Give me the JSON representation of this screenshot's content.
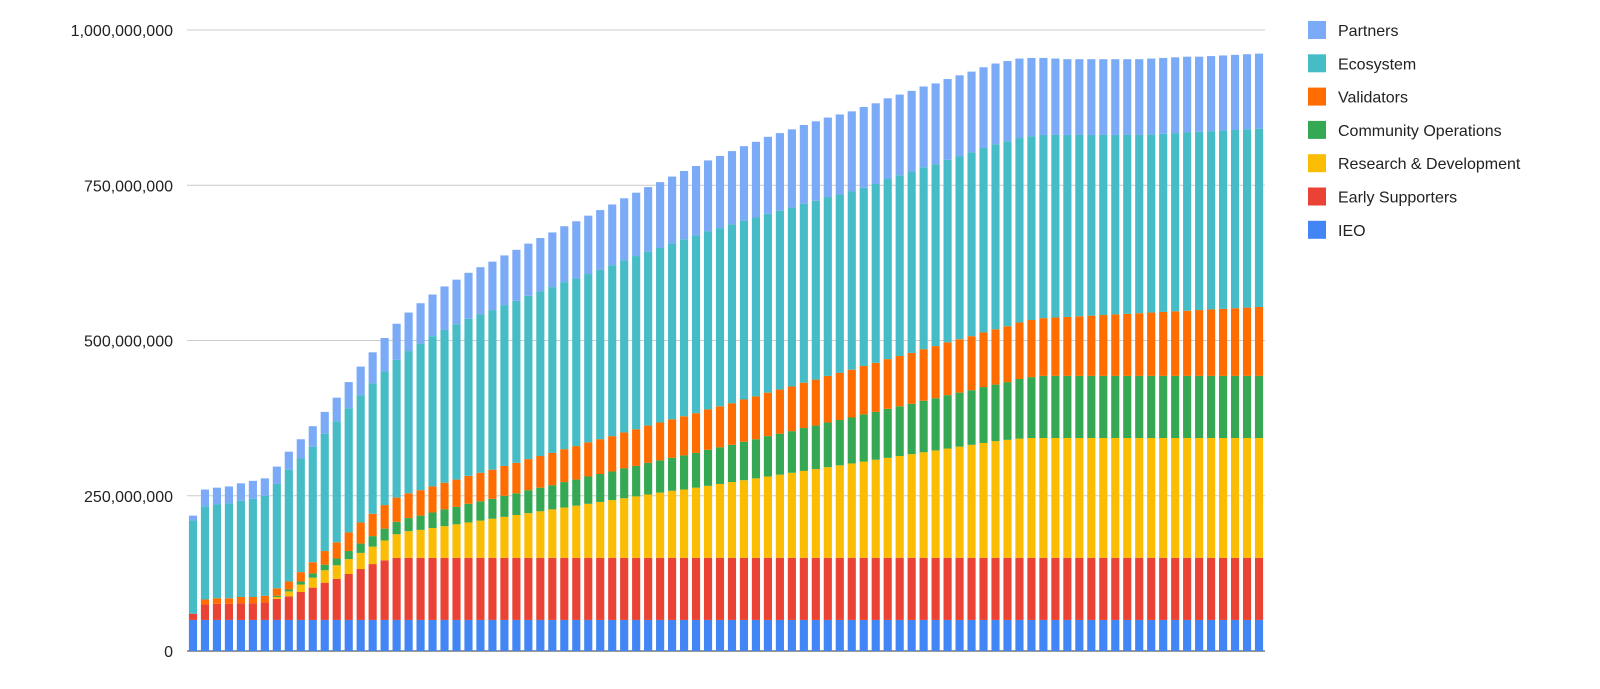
{
  "chart_data": {
    "type": "bar",
    "stacked": true,
    "categories_count": 90,
    "ylim": [
      0,
      1000000000
    ],
    "y_ticks": [
      {
        "value": 0,
        "label": "0"
      },
      {
        "value": 250000000,
        "label": "250,000,000"
      },
      {
        "value": 500000000,
        "label": "500,000,000"
      },
      {
        "value": 750000000,
        "label": "750,000,000"
      },
      {
        "value": 1000000000,
        "label": "1,000,000,000"
      }
    ],
    "grid": "horizontal",
    "legend_position": "right",
    "legend_order": [
      "Partners",
      "Ecosystem",
      "Validators",
      "Community Operations",
      "Research & Development",
      "Early Supporters",
      "IEO"
    ],
    "series": [
      {
        "name": "IEO",
        "color": "#4285F4",
        "values": [
          50000000,
          50000000,
          50000000,
          50000000,
          50000000,
          50000000,
          50000000,
          50000000,
          50000000,
          50000000,
          50000000,
          50000000,
          50000000,
          50000000,
          50000000,
          50000000,
          50000000,
          50000000,
          50000000,
          50000000,
          50000000,
          50000000,
          50000000,
          50000000,
          50000000,
          50000000,
          50000000,
          50000000,
          50000000,
          50000000,
          50000000,
          50000000,
          50000000,
          50000000,
          50000000,
          50000000,
          50000000,
          50000000,
          50000000,
          50000000,
          50000000,
          50000000,
          50000000,
          50000000,
          50000000,
          50000000,
          50000000,
          50000000,
          50000000,
          50000000,
          50000000,
          50000000,
          50000000,
          50000000,
          50000000,
          50000000,
          50000000,
          50000000,
          50000000,
          50000000,
          50000000,
          50000000,
          50000000,
          50000000,
          50000000,
          50000000,
          50000000,
          50000000,
          50000000,
          50000000,
          50000000,
          50000000,
          50000000,
          50000000,
          50000000,
          50000000,
          50000000,
          50000000,
          50000000,
          50000000,
          50000000,
          50000000,
          50000000,
          50000000,
          50000000,
          50000000,
          50000000,
          50000000,
          50000000,
          50000000
        ]
      },
      {
        "name": "Early Supporters",
        "color": "#EA4335",
        "values": [
          10000000,
          25000000,
          26000000,
          26000000,
          27000000,
          27000000,
          28000000,
          34000000,
          38000000,
          45000000,
          52000000,
          60000000,
          66000000,
          74000000,
          82000000,
          90000000,
          96000000,
          100000000,
          100000000,
          100000000,
          100000000,
          100000000,
          100000000,
          100000000,
          100000000,
          100000000,
          100000000,
          100000000,
          100000000,
          100000000,
          100000000,
          100000000,
          100000000,
          100000000,
          100000000,
          100000000,
          100000000,
          100000000,
          100000000,
          100000000,
          100000000,
          100000000,
          100000000,
          100000000,
          100000000,
          100000000,
          100000000,
          100000000,
          100000000,
          100000000,
          100000000,
          100000000,
          100000000,
          100000000,
          100000000,
          100000000,
          100000000,
          100000000,
          100000000,
          100000000,
          100000000,
          100000000,
          100000000,
          100000000,
          100000000,
          100000000,
          100000000,
          100000000,
          100000000,
          100000000,
          100000000,
          100000000,
          100000000,
          100000000,
          100000000,
          100000000,
          100000000,
          100000000,
          100000000,
          100000000,
          100000000,
          100000000,
          100000000,
          100000000,
          100000000,
          100000000,
          100000000,
          100000000,
          100000000,
          100000000
        ]
      },
      {
        "name": "Research & Development",
        "color": "#FBBC04",
        "values": [
          0,
          0,
          0,
          0,
          0,
          0,
          0,
          3000000,
          8000000,
          12000000,
          16000000,
          20000000,
          22000000,
          24000000,
          26000000,
          28000000,
          32000000,
          38000000,
          43000000,
          45000000,
          48000000,
          51000000,
          54000000,
          57000000,
          60000000,
          63000000,
          66000000,
          69000000,
          72000000,
          75000000,
          78000000,
          81000000,
          84000000,
          87000000,
          90000000,
          93000000,
          96000000,
          99000000,
          102000000,
          105000000,
          108000000,
          110000000,
          113000000,
          116000000,
          119000000,
          122000000,
          125000000,
          128000000,
          131000000,
          134000000,
          137000000,
          140000000,
          143000000,
          146000000,
          149000000,
          152000000,
          155000000,
          158000000,
          161000000,
          164000000,
          167000000,
          170000000,
          173000000,
          176000000,
          179000000,
          182000000,
          185000000,
          188000000,
          190000000,
          192000000,
          193000000,
          193000000,
          193000000,
          193000000,
          193000000,
          193000000,
          193000000,
          193000000,
          193000000,
          193000000,
          193000000,
          193000000,
          193000000,
          193000000,
          193000000,
          193000000,
          193000000,
          193000000,
          193000000,
          193000000
        ]
      },
      {
        "name": "Community Operations",
        "color": "#34A853",
        "values": [
          0,
          0,
          0,
          0,
          0,
          0,
          0,
          2000000,
          3000000,
          5000000,
          7000000,
          9000000,
          11000000,
          13000000,
          15000000,
          17000000,
          19000000,
          20000000,
          21000000,
          23000000,
          25000000,
          27000000,
          28000000,
          30000000,
          31000000,
          32000000,
          34000000,
          35000000,
          37000000,
          38000000,
          39000000,
          41000000,
          42000000,
          44000000,
          45000000,
          46000000,
          48000000,
          49000000,
          51000000,
          52000000,
          53000000,
          55000000,
          56000000,
          58000000,
          59000000,
          60000000,
          62000000,
          63000000,
          65000000,
          66000000,
          67000000,
          69000000,
          70000000,
          72000000,
          73000000,
          74000000,
          76000000,
          77000000,
          79000000,
          80000000,
          81000000,
          83000000,
          84000000,
          86000000,
          87000000,
          88000000,
          90000000,
          91000000,
          93000000,
          96000000,
          98000000,
          100000000,
          100000000,
          100000000,
          100000000,
          100000000,
          100000000,
          100000000,
          100000000,
          100000000,
          100000000,
          100000000,
          100000000,
          100000000,
          100000000,
          100000000,
          100000000,
          100000000,
          100000000,
          100000000
        ]
      },
      {
        "name": "Validators",
        "color": "#FF6D01",
        "values": [
          0,
          8000000,
          9000000,
          9000000,
          10000000,
          10000000,
          11000000,
          12000000,
          13000000,
          15000000,
          18000000,
          22000000,
          26000000,
          30000000,
          34000000,
          36000000,
          38000000,
          39000000,
          40000000,
          41000000,
          42000000,
          43000000,
          44000000,
          45000000,
          46000000,
          47000000,
          48000000,
          49000000,
          50000000,
          51000000,
          52000000,
          53000000,
          54000000,
          55000000,
          56000000,
          57000000,
          58000000,
          59000000,
          60000000,
          61000000,
          62000000,
          63000000,
          64000000,
          65000000,
          66000000,
          67000000,
          68000000,
          69000000,
          70000000,
          71000000,
          72000000,
          73000000,
          74000000,
          75000000,
          76000000,
          77000000,
          78000000,
          79000000,
          80000000,
          81000000,
          82000000,
          83000000,
          84000000,
          85000000,
          86000000,
          87000000,
          88000000,
          89000000,
          90000000,
          91000000,
          92000000,
          93000000,
          94000000,
          95000000,
          96000000,
          97000000,
          98000000,
          99000000,
          100000000,
          101000000,
          102000000,
          103000000,
          104000000,
          105000000,
          106000000,
          107000000,
          108000000,
          109000000,
          110000000,
          111000000
        ]
      },
      {
        "name": "Ecosystem",
        "color": "#46BDC6",
        "values": [
          150000000,
          150000000,
          151000000,
          153000000,
          155000000,
          158000000,
          161000000,
          168000000,
          180000000,
          183000000,
          186000000,
          189000000,
          195000000,
          200000000,
          205000000,
          210000000,
          215000000,
          222000000,
          229000000,
          236000000,
          242000000,
          246000000,
          250000000,
          253000000,
          255000000,
          257000000,
          259000000,
          261000000,
          263000000,
          265000000,
          267000000,
          269000000,
          270000000,
          271000000,
          273000000,
          275000000,
          277000000,
          279000000,
          280000000,
          281000000,
          283000000,
          285000000,
          286000000,
          287000000,
          287000000,
          288000000,
          288000000,
          288000000,
          288000000,
          288000000,
          288000000,
          288000000,
          288000000,
          288000000,
          287000000,
          287000000,
          287000000,
          288000000,
          290000000,
          291000000,
          292000000,
          293000000,
          293000000,
          294000000,
          295000000,
          296000000,
          297000000,
          298000000,
          298000000,
          297000000,
          296000000,
          295000000,
          294000000,
          293000000,
          292000000,
          291000000,
          290000000,
          289000000,
          288000000,
          287000000,
          287000000,
          287000000,
          287000000,
          287000000,
          287000000,
          287000000,
          287000000,
          287000000,
          287000000,
          287000000
        ]
      },
      {
        "name": "Partners",
        "color": "#7BAAF7",
        "values": [
          8000000,
          27000000,
          27000000,
          27000000,
          28000000,
          29000000,
          28000000,
          28000000,
          29000000,
          31000000,
          33000000,
          35000000,
          38000000,
          42000000,
          46000000,
          50000000,
          54000000,
          58000000,
          62000000,
          65000000,
          67000000,
          70000000,
          72000000,
          74000000,
          76000000,
          78000000,
          80000000,
          82000000,
          84000000,
          86000000,
          88000000,
          90000000,
          92000000,
          94000000,
          96000000,
          98000000,
          100000000,
          102000000,
          104000000,
          106000000,
          108000000,
          110000000,
          112000000,
          114000000,
          116000000,
          118000000,
          120000000,
          122000000,
          124000000,
          125000000,
          126000000,
          127000000,
          128000000,
          128000000,
          129000000,
          129000000,
          130000000,
          130000000,
          130000000,
          130000000,
          130000000,
          130000000,
          130000000,
          130000000,
          130000000,
          130000000,
          130000000,
          130000000,
          129000000,
          128000000,
          126000000,
          124000000,
          123000000,
          122000000,
          122000000,
          122000000,
          122000000,
          122000000,
          122000000,
          122000000,
          122000000,
          122000000,
          122000000,
          122000000,
          121000000,
          121000000,
          121000000,
          121000000,
          121000000,
          121000000
        ]
      }
    ]
  }
}
